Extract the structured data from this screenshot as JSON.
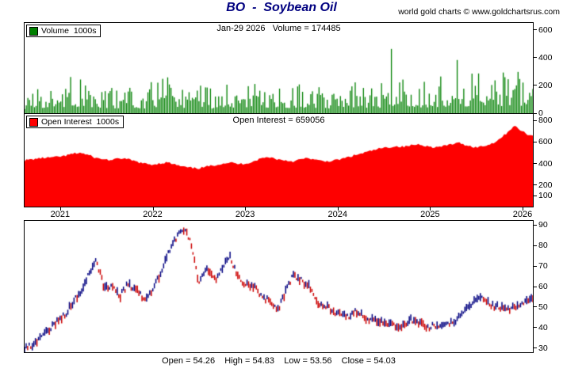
{
  "header": {
    "title": "BO  -  Soybean Oil",
    "credit": "world gold charts © www.goldchartsrus.com"
  },
  "panels": {
    "volume": {
      "legend_label": "Volume  1000s"
    },
    "open_interest": {
      "legend_label": "Open Interest  1000s"
    }
  },
  "x_axis": {
    "xlim": [
      2020.615,
      2026.111
    ],
    "tick_values": [
      2021,
      2022,
      2023,
      2024,
      2025,
      2026
    ],
    "tick_labels": [
      "2021",
      "2022",
      "2023",
      "2024",
      "2025",
      "2026"
    ]
  },
  "chart_data": [
    {
      "type": "bar",
      "name": "Volume",
      "units": "1000s",
      "color": "#008000",
      "ylim": [
        0,
        650
      ],
      "yticks": [
        0,
        200,
        400,
        600
      ],
      "x_start": 2020.62,
      "x_step": 0.0853,
      "values": [
        100,
        110,
        120,
        130,
        140,
        150,
        160,
        140,
        150,
        140,
        120,
        110,
        120,
        130,
        120,
        110,
        130,
        140,
        150,
        140,
        130,
        120,
        110,
        120,
        110,
        120,
        130,
        110,
        120,
        130,
        140,
        130,
        140,
        130,
        120,
        130,
        120,
        130,
        120,
        110,
        120,
        130,
        140,
        130,
        140,
        130,
        140,
        130,
        140,
        150,
        140,
        130,
        140,
        150,
        160,
        150,
        160,
        170,
        160,
        170,
        160,
        170,
        180,
        170,
        174
      ],
      "latest_value": 174485,
      "latest_label": "Jan-29 2026   Volume = 174485"
    },
    {
      "type": "area",
      "name": "Open Interest",
      "units": "1000s",
      "color": "#FE0000",
      "ylim": [
        0,
        860
      ],
      "yticks": [
        100,
        200,
        400,
        600,
        800
      ],
      "x_start": 2020.62,
      "x_step": 0.0853,
      "values": [
        430,
        440,
        450,
        455,
        460,
        470,
        490,
        500,
        480,
        450,
        440,
        430,
        450,
        440,
        420,
        400,
        390,
        400,
        410,
        390,
        370,
        360,
        355,
        370,
        385,
        400,
        410,
        395,
        400,
        420,
        450,
        460,
        440,
        430,
        420,
        440,
        450,
        430,
        420,
        425,
        440,
        460,
        480,
        500,
        520,
        540,
        550,
        560,
        555,
        570,
        580,
        560,
        550,
        560,
        580,
        590,
        570,
        550,
        560,
        580,
        620,
        680,
        750,
        700,
        659
      ],
      "latest_value": 659056,
      "latest_label": "Open Interest = 659056"
    },
    {
      "type": "candlestick",
      "name": "BO Soybean Oil price",
      "up_color": "#000080",
      "down_color": "#CC0000",
      "ylim": [
        28,
        92
      ],
      "yticks": [
        30,
        40,
        50,
        60,
        70,
        80,
        90
      ],
      "x_start": 2020.62,
      "x_step": 0.0853,
      "values": [
        30,
        32,
        35,
        39,
        43,
        46,
        52,
        57,
        66,
        73,
        60,
        60,
        55,
        61,
        59,
        54,
        58,
        65,
        75,
        83,
        88,
        83,
        61,
        68,
        63,
        69,
        75,
        64,
        61,
        60,
        55,
        53,
        48,
        57,
        66,
        63,
        60,
        52,
        51,
        48,
        46,
        45,
        48,
        45,
        44,
        43,
        42,
        40,
        41,
        44,
        42,
        40,
        41,
        42,
        42,
        45,
        49,
        53,
        55,
        51,
        50,
        49,
        50,
        52,
        54
      ],
      "latest": {
        "open": 54.26,
        "high": 54.83,
        "low": 53.56,
        "close": 54.03
      },
      "latest_label": "Open = 54.26    High = 54.83    Low = 53.56    Close = 54.03"
    }
  ]
}
